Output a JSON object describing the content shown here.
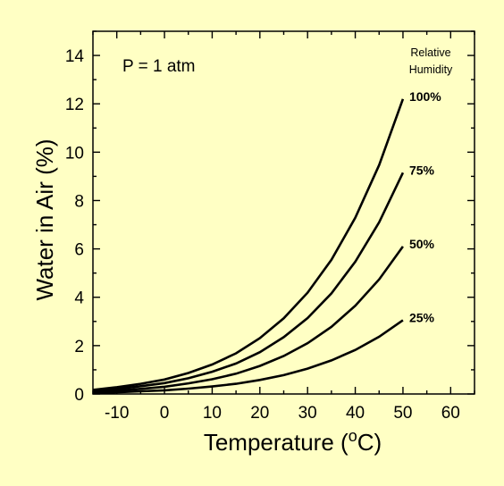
{
  "chart_data": {
    "type": "line",
    "title": "",
    "xlabel": "Temperature (oC)",
    "xlabel_parts": {
      "pre": "Temperature (",
      "sup": "o",
      "post": "C)"
    },
    "ylabel": "Water in Air (%)",
    "xlim": [
      -15,
      65
    ],
    "ylim": [
      0,
      15
    ],
    "x_ticks": [
      -10,
      0,
      10,
      20,
      30,
      40,
      50,
      60
    ],
    "y_ticks": [
      0,
      2,
      4,
      6,
      8,
      10,
      12,
      14
    ],
    "x_tick_labels": [
      "-10",
      "0",
      "10",
      "20",
      "30",
      "40",
      "50",
      "60"
    ],
    "y_tick_labels": [
      "0",
      "2",
      "4",
      "6",
      "8",
      "10",
      "12",
      "14"
    ],
    "grid": false,
    "annotation": "P = 1 atm",
    "legend_title_lines": [
      "Relative",
      "Humidity"
    ],
    "x": [
      -15,
      -10,
      -5,
      0,
      5,
      10,
      15,
      20,
      25,
      30,
      35,
      40,
      45,
      50
    ],
    "series": [
      {
        "name": "100%",
        "values": [
          0.17,
          0.28,
          0.42,
          0.6,
          0.87,
          1.22,
          1.68,
          2.31,
          3.13,
          4.19,
          5.55,
          7.29,
          9.47,
          12.2
        ]
      },
      {
        "name": "75%",
        "values": [
          0.13,
          0.21,
          0.32,
          0.45,
          0.65,
          0.92,
          1.26,
          1.73,
          2.35,
          3.14,
          4.16,
          5.47,
          7.1,
          9.15
        ]
      },
      {
        "name": "50%",
        "values": [
          0.09,
          0.14,
          0.21,
          0.3,
          0.44,
          0.61,
          0.84,
          1.16,
          1.57,
          2.1,
          2.78,
          3.65,
          4.74,
          6.1
        ]
      },
      {
        "name": "25%",
        "values": [
          0.04,
          0.07,
          0.11,
          0.15,
          0.22,
          0.31,
          0.42,
          0.58,
          0.78,
          1.05,
          1.39,
          1.82,
          2.37,
          3.05
        ]
      }
    ]
  }
}
